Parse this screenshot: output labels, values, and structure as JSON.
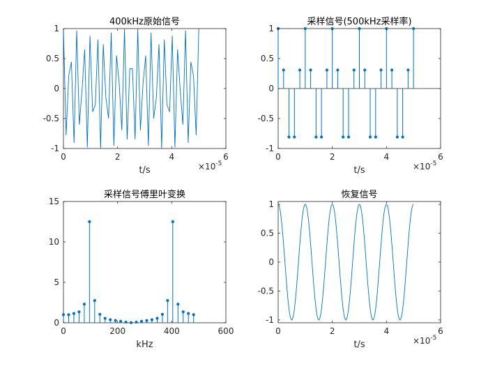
{
  "colors": {
    "series": "#0072BD",
    "axis": "#262626",
    "background": "#ffffff"
  },
  "chart_data": [
    {
      "id": "p1",
      "type": "line",
      "title": "400kHz原始信号",
      "xlabel": "t/s",
      "x_exponent": "×10",
      "x_exponent_power": "-5",
      "xlim": [
        0,
        6
      ],
      "ylim": [
        -1,
        1
      ],
      "xticks": [
        0,
        2,
        4,
        6
      ],
      "xtick_labels": [
        "0",
        "2",
        "4",
        "6"
      ],
      "yticks": [
        -1,
        -0.5,
        0,
        0.5,
        1
      ],
      "ytick_labels": [
        "-1",
        "-0.5",
        "0",
        "0.5",
        "1"
      ],
      "series": [
        {
          "function": "cos(2*pi*400000*t)",
          "x_scale": 1e-05,
          "x_range": [
            0,
            5
          ],
          "samples": 51,
          "render": "line"
        }
      ]
    },
    {
      "id": "p2",
      "type": "stem",
      "title": "采样信号(500kHz采样率)",
      "xlabel": "t/s",
      "x_exponent": "×10",
      "x_exponent_power": "-5",
      "xlim": [
        0,
        6
      ],
      "ylim": [
        -1,
        1
      ],
      "xticks": [
        0,
        2,
        4,
        6
      ],
      "xtick_labels": [
        "0",
        "2",
        "4",
        "6"
      ],
      "yticks": [
        -1,
        -0.5,
        0,
        0.5,
        1
      ],
      "ytick_labels": [
        "-1",
        "-0.5",
        "0",
        "0.5",
        "1"
      ],
      "zero_line": true,
      "series": [
        {
          "x": [
            0,
            0.2,
            0.4,
            0.6,
            0.8,
            1.0,
            1.2,
            1.4,
            1.6,
            1.8,
            2.0,
            2.2,
            2.4,
            2.6,
            2.8,
            3.0,
            3.2,
            3.4,
            3.6,
            3.8,
            4.0,
            4.2,
            4.4,
            4.6,
            4.8,
            5.0
          ],
          "y": [
            1,
            0.309,
            -0.809,
            -0.809,
            0.309,
            1,
            0.309,
            -0.809,
            -0.809,
            0.309,
            1,
            0.309,
            -0.809,
            -0.809,
            0.309,
            1,
            0.309,
            -0.809,
            -0.809,
            0.309,
            1,
            0.309,
            -0.809,
            -0.809,
            0.309,
            1
          ],
          "render": "stem"
        }
      ]
    },
    {
      "id": "p3",
      "type": "stem",
      "title": "采样信号傅里叶变换",
      "xlabel": "kHz",
      "x_exponent": "",
      "x_exponent_power": "",
      "xlim": [
        0,
        600
      ],
      "ylim": [
        0,
        15
      ],
      "xticks": [
        0,
        200,
        400,
        600
      ],
      "xtick_labels": [
        "0",
        "200",
        "400",
        "600"
      ],
      "yticks": [
        0,
        5,
        10,
        15
      ],
      "ytick_labels": [
        "0",
        "5",
        "10",
        "15"
      ],
      "zero_line": false,
      "series": [
        {
          "x": [
            0,
            19.2,
            38.5,
            57.7,
            76.9,
            96.2,
            115.4,
            134.6,
            153.8,
            173.1,
            192.3,
            211.5,
            230.8,
            250,
            269.2,
            288.5,
            307.7,
            326.9,
            346.2,
            365.4,
            384.6,
            403.8,
            423.1,
            442.3,
            461.5,
            480.8
          ],
          "y": [
            1.0,
            1.0,
            1.15,
            1.35,
            2.3,
            12.5,
            2.75,
            1.05,
            0.55,
            0.38,
            0.28,
            0.18,
            0.08,
            0.02,
            0.08,
            0.18,
            0.28,
            0.38,
            0.55,
            1.05,
            2.75,
            12.5,
            2.3,
            1.35,
            1.15,
            1.0
          ],
          "render": "stem"
        }
      ]
    },
    {
      "id": "p4",
      "type": "line",
      "title": "恢复信号",
      "xlabel": "t/s",
      "x_exponent": "×10",
      "x_exponent_power": "-5",
      "xlim": [
        0,
        6
      ],
      "ylim": [
        -1,
        1
      ],
      "xticks": [
        0,
        2,
        4,
        6
      ],
      "xtick_labels": [
        "0",
        "2",
        "4",
        "6"
      ],
      "yticks": [
        -1,
        -0.5,
        0,
        0.5,
        1
      ],
      "ytick_labels": [
        "-1",
        "-0.5",
        "0",
        "0.5",
        "1"
      ],
      "series": [
        {
          "function": "cos(2*pi*100000*t)",
          "x_scale": 1e-05,
          "x_range": [
            0,
            5
          ],
          "samples": 400,
          "render": "line"
        }
      ]
    }
  ]
}
